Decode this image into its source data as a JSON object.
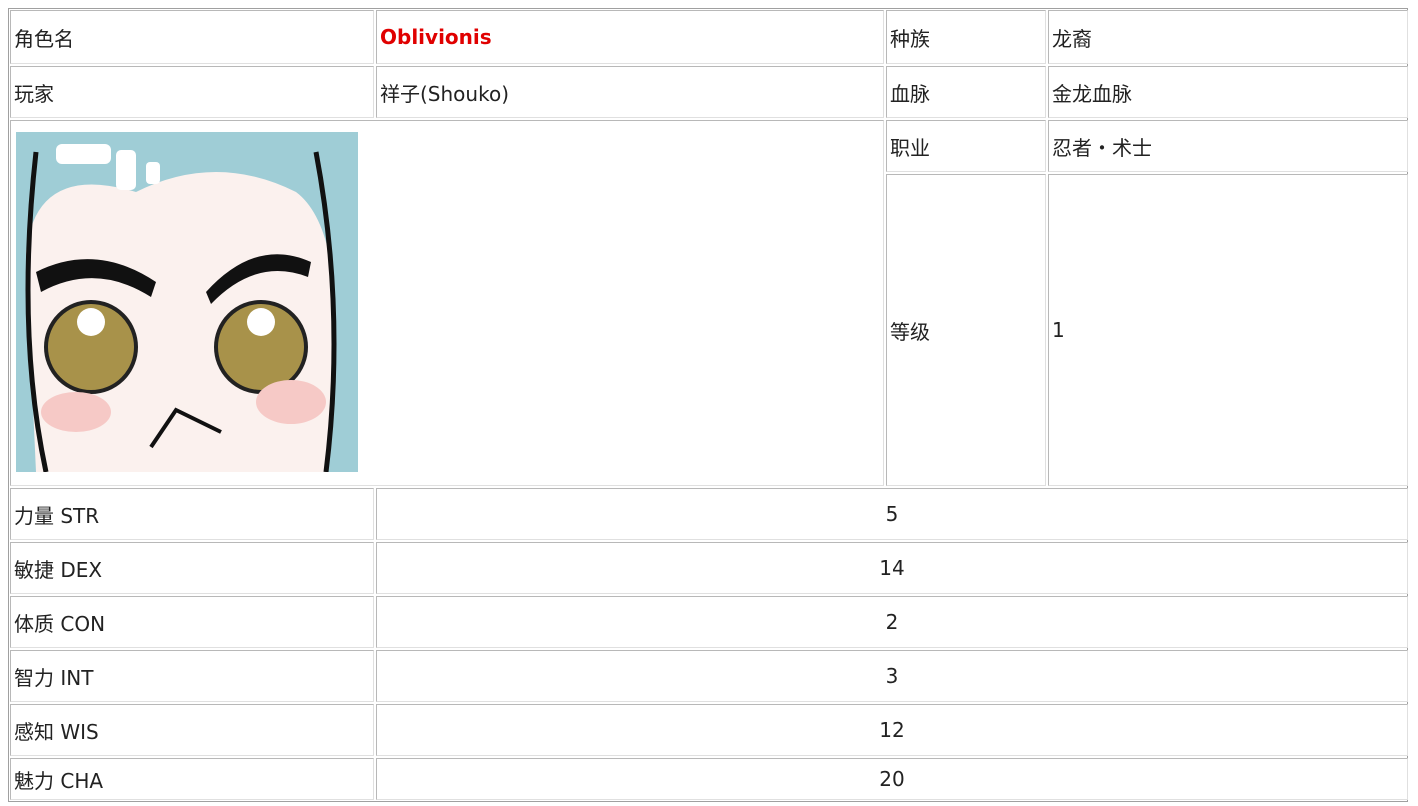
{
  "rows": [
    [
      "角色名",
      "Oblivionis",
      "种族",
      "龙裔"
    ],
    [
      "玩家",
      "祥子(Shouko)",
      "血脉",
      "金龙血脉"
    ]
  ],
  "details": [
    [
      "职业",
      "忍者・术士"
    ],
    [
      "等级",
      "1"
    ]
  ],
  "stats": [
    {
      "name": "力量 STR",
      "value": 5
    },
    {
      "name": "敏捷 DEX",
      "value": 14
    },
    {
      "name": "体质 CON",
      "value": 2
    },
    {
      "name": "智力 INT",
      "value": 3
    },
    {
      "name": "感知 WIS",
      "value": 12
    },
    {
      "name": "魅力 CHA",
      "value": 20
    }
  ]
}
